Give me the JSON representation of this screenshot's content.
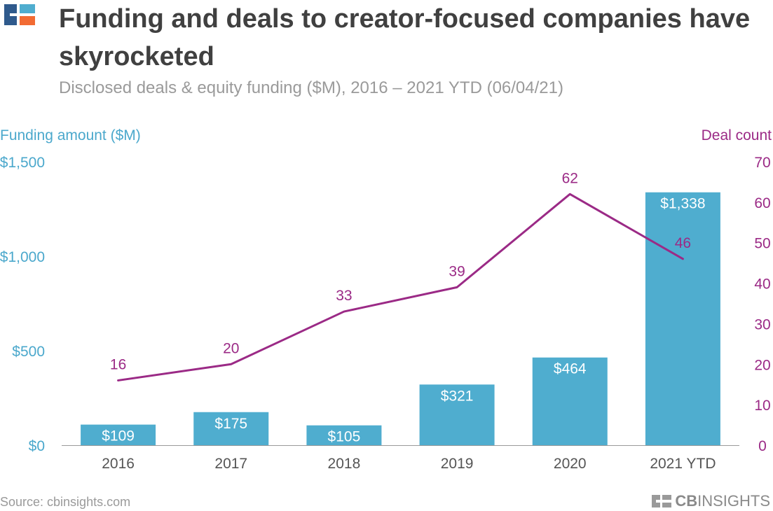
{
  "header": {
    "title": "Funding and deals to creator-focused companies have skyrocketed",
    "subtitle": "Disclosed deals & equity funding ($M), 2016 – 2021 YTD (06/04/21)"
  },
  "footer": {
    "source": "Source: cbinsights.com",
    "brand_bold": "CB",
    "brand_light": "INSIGHTS"
  },
  "colors": {
    "bar": "#4fadcf",
    "line": "#9b2a86",
    "left_axis": "#4ba8cc",
    "right_axis": "#9b2a86",
    "logo_blue": "#2f5a8c",
    "logo_orange": "#f26b33",
    "logo_light": "#4fadcf"
  },
  "chart_data": {
    "type": "bar",
    "categories": [
      "2016",
      "2017",
      "2018",
      "2019",
      "2020",
      "2021 YTD"
    ],
    "series": [
      {
        "name": "Funding amount ($M)",
        "type": "bar",
        "axis": "left",
        "values": [
          109,
          175,
          105,
          321,
          464,
          1338
        ],
        "labels": [
          "$109",
          "$175",
          "$105",
          "$321",
          "$464",
          "$1,338"
        ]
      },
      {
        "name": "Deal count",
        "type": "line",
        "axis": "right",
        "values": [
          16,
          20,
          33,
          39,
          62,
          46
        ],
        "labels": [
          "16",
          "20",
          "33",
          "39",
          "62",
          "46"
        ]
      }
    ],
    "y_left": {
      "label": "Funding amount ($M)",
      "lim": [
        0,
        1500
      ],
      "ticks": [
        0,
        500,
        1000,
        1500
      ],
      "tick_labels": [
        "$0",
        "$500",
        "$1,000",
        "$1,500"
      ]
    },
    "y_right": {
      "label": "Deal count",
      "lim": [
        0,
        70
      ],
      "ticks": [
        0,
        10,
        20,
        30,
        40,
        50,
        60,
        70
      ],
      "tick_labels": [
        "0",
        "10",
        "20",
        "30",
        "40",
        "50",
        "60",
        "70"
      ]
    },
    "grid": false
  }
}
